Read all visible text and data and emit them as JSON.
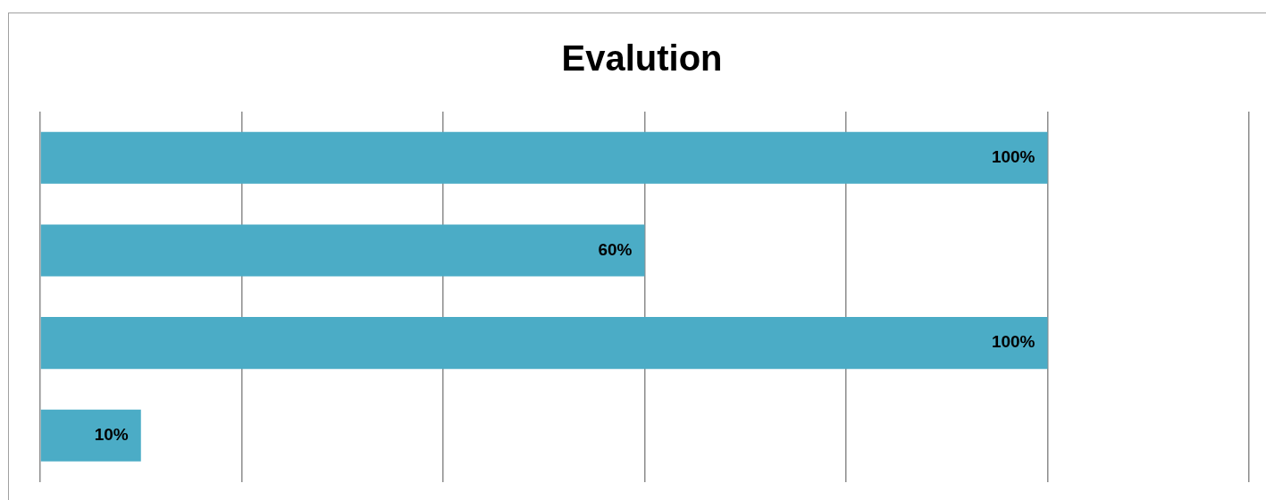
{
  "chart_data": {
    "type": "bar",
    "orientation": "horizontal",
    "title": "Evalution",
    "categories": [
      null,
      null,
      null,
      null
    ],
    "values": [
      100,
      60,
      100,
      10
    ],
    "value_labels": [
      "100%",
      "60%",
      "100%",
      "10%"
    ],
    "color": "#4bacc6",
    "xlim": [
      0,
      120
    ],
    "xticks": [
      {
        "value": 0,
        "label": null
      },
      {
        "value": 20,
        "label": null
      },
      {
        "value": 40,
        "label": null
      },
      {
        "value": 60,
        "label": null
      },
      {
        "value": 80,
        "label": null
      },
      {
        "value": 100,
        "label": null
      },
      {
        "value": 120,
        "label": null
      }
    ],
    "grid": "x",
    "legend": false
  }
}
